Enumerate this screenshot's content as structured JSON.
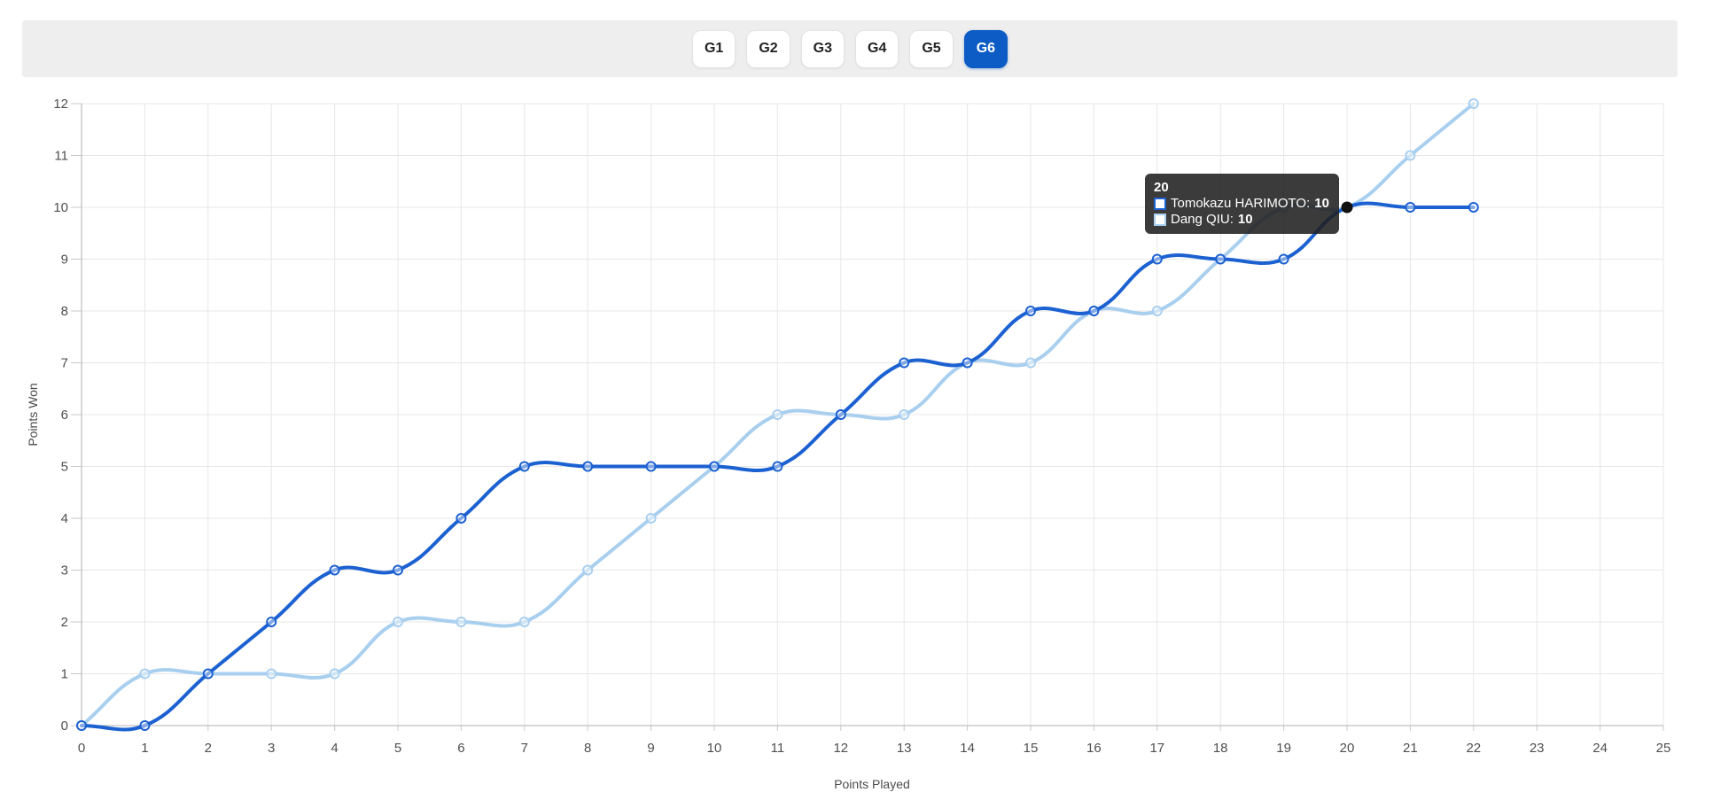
{
  "tabs": {
    "items": [
      {
        "label": "G1",
        "active": false
      },
      {
        "label": "G2",
        "active": false
      },
      {
        "label": "G3",
        "active": false
      },
      {
        "label": "G4",
        "active": false
      },
      {
        "label": "G5",
        "active": false
      },
      {
        "label": "G6",
        "active": true
      }
    ]
  },
  "chart_data": {
    "type": "line",
    "xlabel": "Points Played",
    "ylabel": "Points Won",
    "xlim": [
      0,
      25
    ],
    "ylim": [
      0,
      12
    ],
    "x_ticks": [
      0,
      1,
      2,
      3,
      4,
      5,
      6,
      7,
      8,
      9,
      10,
      11,
      12,
      13,
      14,
      15,
      16,
      17,
      18,
      19,
      20,
      21,
      22,
      23,
      24,
      25
    ],
    "y_ticks": [
      0,
      1,
      2,
      3,
      4,
      5,
      6,
      7,
      8,
      9,
      10,
      11,
      12
    ],
    "grid": true,
    "x": [
      0,
      1,
      2,
      3,
      4,
      5,
      6,
      7,
      8,
      9,
      10,
      11,
      12,
      13,
      14,
      15,
      16,
      17,
      18,
      19,
      20,
      21,
      22
    ],
    "series": [
      {
        "name": "Tomokazu HARIMOTO",
        "color": "#1c61d1",
        "values": [
          0,
          0,
          1,
          2,
          3,
          3,
          4,
          5,
          5,
          5,
          5,
          5,
          6,
          7,
          7,
          8,
          8,
          9,
          9,
          9,
          10,
          10,
          10
        ]
      },
      {
        "name": "Dang QIU",
        "color": "#a9cfef",
        "values": [
          0,
          1,
          1,
          1,
          1,
          2,
          2,
          2,
          3,
          4,
          5,
          6,
          6,
          6,
          7,
          7,
          8,
          8,
          9,
          10,
          10,
          11,
          12
        ]
      }
    ],
    "highlight": {
      "x": 20,
      "y": 10
    }
  },
  "tooltip": {
    "title": "20",
    "rows": [
      {
        "label": "Tomokazu HARIMOTO",
        "value": "10"
      },
      {
        "label": "Dang QIU",
        "value": "10"
      }
    ]
  },
  "colors": {
    "accent": "#0d5bc5",
    "tabbar_bg": "#eeeeee",
    "grid": "#e7e7e7",
    "axis": "#b0b0b0",
    "tick_mark": "#c9c9c9",
    "tick_text": "#4f4f4f",
    "axis_title": "#4c4c4c",
    "tooltip_bg": "rgba(32,32,32,0.88)",
    "active_point": "#101010"
  }
}
